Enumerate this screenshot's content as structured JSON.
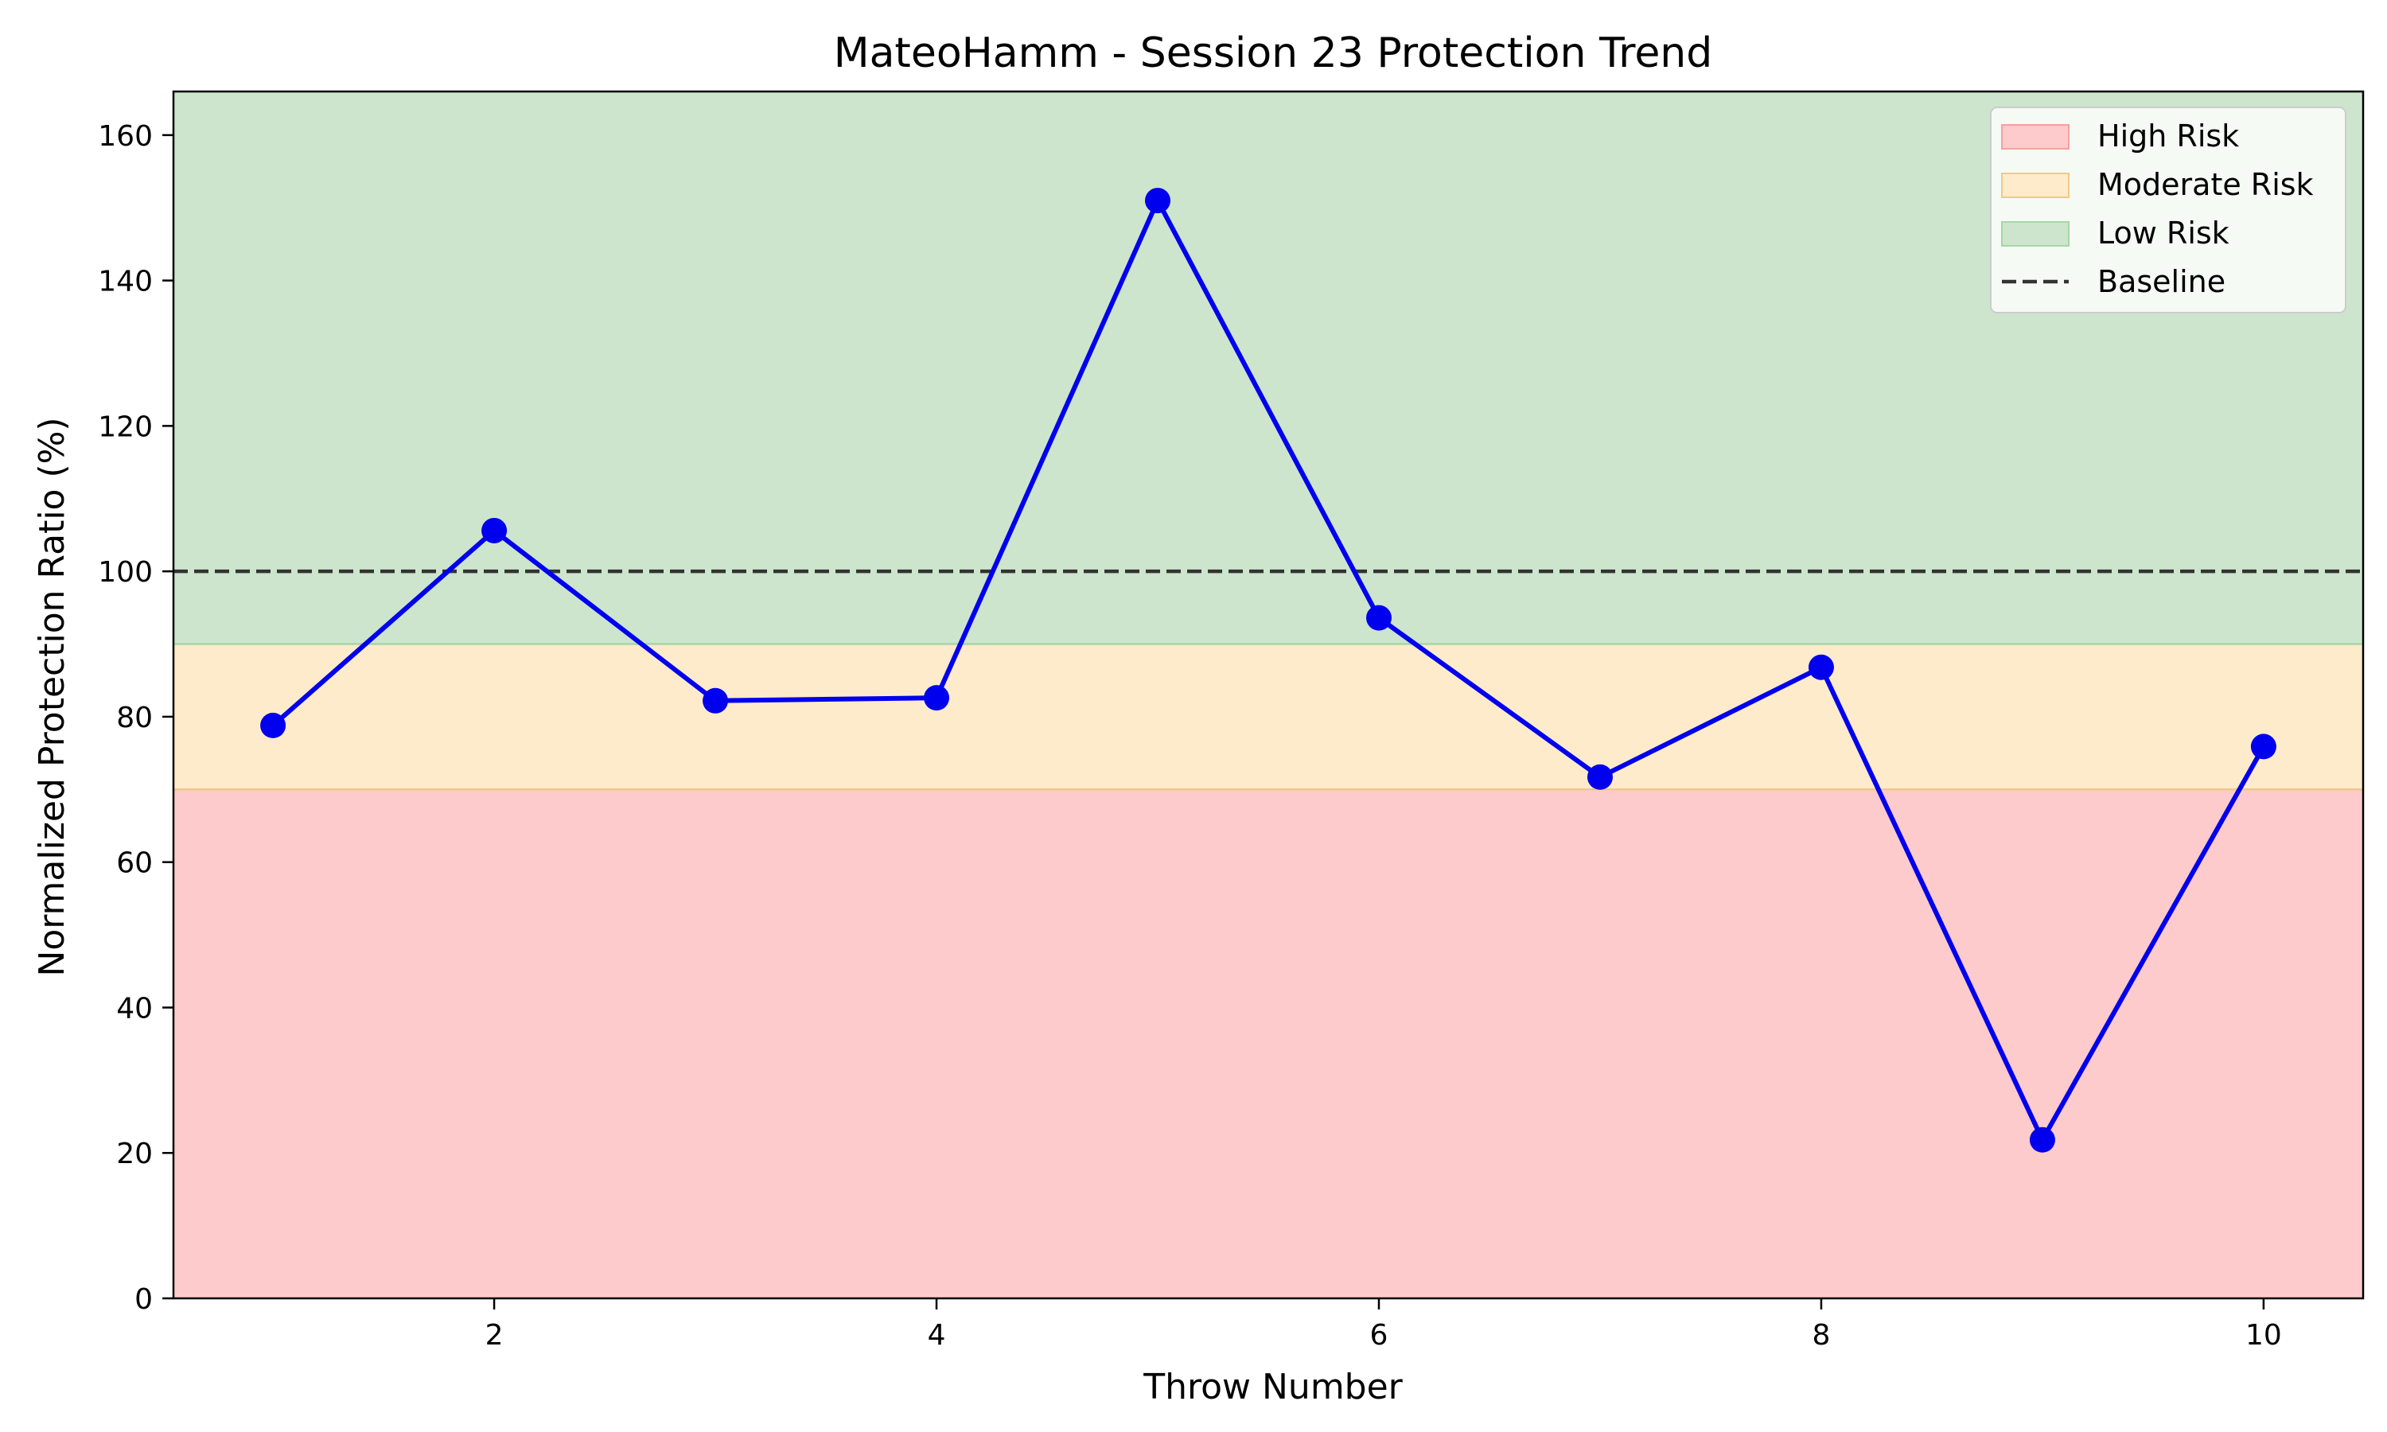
{
  "chart_data": {
    "type": "line",
    "title": "MateoHamm - Session 23 Protection Trend",
    "xlabel": "Throw Number",
    "ylabel": "Normalized Protection Ratio (%)",
    "xlim": [
      0.55,
      10.45
    ],
    "ylim": [
      0,
      166
    ],
    "x_ticks": [
      2,
      4,
      6,
      8,
      10
    ],
    "y_ticks": [
      0,
      20,
      40,
      60,
      80,
      100,
      120,
      140,
      160
    ],
    "grid": false,
    "legend_position": "top-right",
    "series": [
      {
        "x": [
          1,
          2,
          3,
          4,
          5,
          6,
          7,
          8,
          9,
          10
        ],
        "values": [
          78.8,
          105.6,
          82.2,
          82.6,
          151.0,
          93.6,
          71.7,
          86.8,
          21.8,
          75.9
        ],
        "color": "#0000ee"
      }
    ],
    "risk_bands": [
      {
        "name": "High Risk",
        "from": 0,
        "to": 70,
        "fill": "#fdcbcb",
        "edge": "#f5a0a0"
      },
      {
        "name": "Moderate Risk",
        "from": 70,
        "to": 90,
        "fill": "#fdebcb",
        "edge": "#f0c98a"
      },
      {
        "name": "Low Risk",
        "from": 90,
        "to": 166,
        "fill": "#cde5cd",
        "edge": "#a6d6a6"
      }
    ],
    "baseline": {
      "name": "Baseline",
      "value": 100,
      "color": "#333333"
    },
    "legend": [
      "High Risk",
      "Moderate Risk",
      "Low Risk",
      "Baseline"
    ]
  }
}
